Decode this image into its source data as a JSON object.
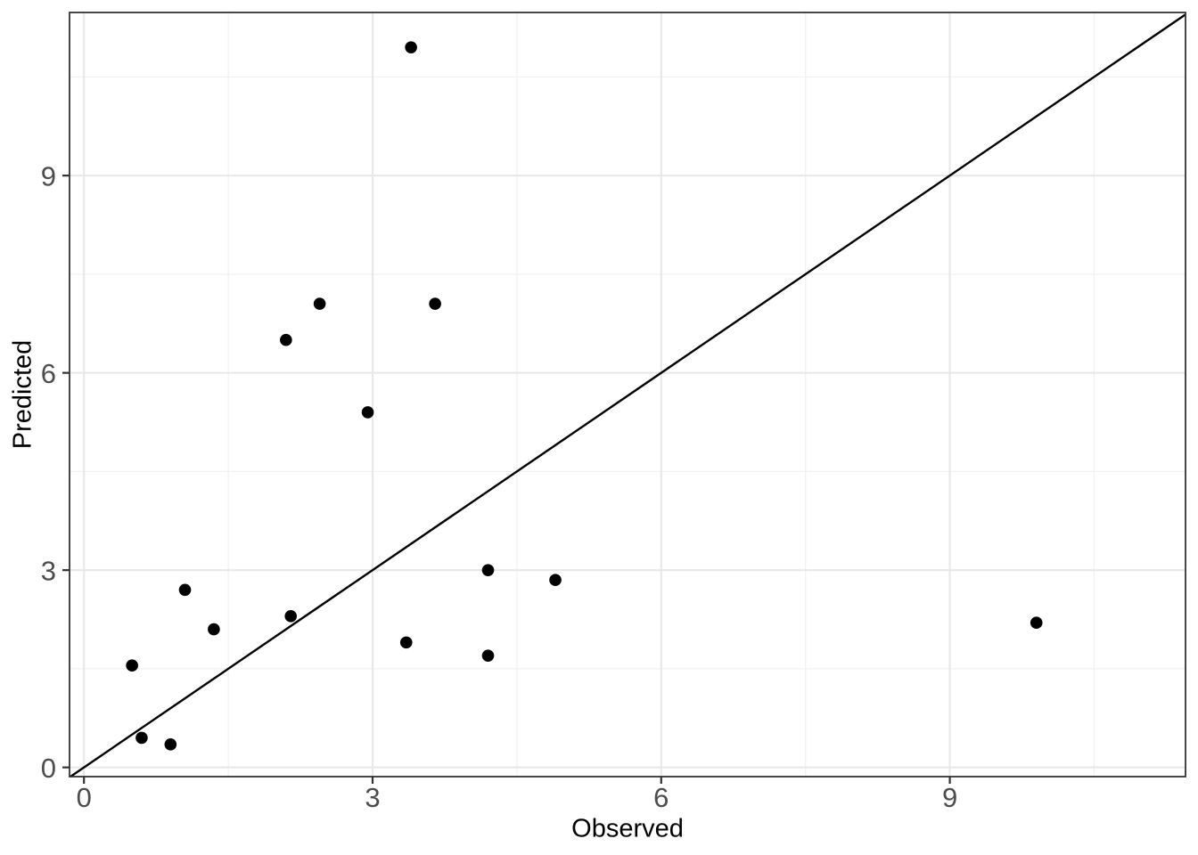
{
  "page": {
    "background": "#FFFFFF"
  },
  "chart_data": {
    "type": "scatter",
    "title": "",
    "xlabel": "Observed",
    "ylabel": "Predicted",
    "x_ticks": [
      0,
      3,
      6,
      9
    ],
    "y_ticks": [
      0,
      3,
      6,
      9
    ],
    "x_minor_gridlines": [
      1.5,
      4.5,
      7.5,
      10.5
    ],
    "y_minor_gridlines": [
      1.5,
      4.5,
      7.5,
      10.5
    ],
    "xlim": [
      -0.15,
      11.45
    ],
    "ylim": [
      -0.14,
      11.48
    ],
    "grid": "on",
    "legend_position": "none",
    "reference_line": {
      "kind": "identity",
      "slope": 1,
      "intercept": 0
    },
    "points": [
      {
        "observed": 3.4,
        "predicted": 10.95
      },
      {
        "observed": 2.45,
        "predicted": 7.05
      },
      {
        "observed": 3.65,
        "predicted": 7.05
      },
      {
        "observed": 2.1,
        "predicted": 6.5
      },
      {
        "observed": 2.95,
        "predicted": 5.4
      },
      {
        "observed": 4.2,
        "predicted": 3.0
      },
      {
        "observed": 4.9,
        "predicted": 2.85
      },
      {
        "observed": 1.05,
        "predicted": 2.7
      },
      {
        "observed": 2.15,
        "predicted": 2.3
      },
      {
        "observed": 1.35,
        "predicted": 2.1
      },
      {
        "observed": 3.35,
        "predicted": 1.9
      },
      {
        "observed": 4.2,
        "predicted": 1.7
      },
      {
        "observed": 0.5,
        "predicted": 1.55
      },
      {
        "observed": 9.9,
        "predicted": 2.2
      },
      {
        "observed": 0.6,
        "predicted": 0.45
      },
      {
        "observed": 0.9,
        "predicted": 0.35
      }
    ],
    "style": {
      "point_color": "#000000",
      "reference_line_color": "#000000",
      "grid_major_color": "#E7E7E7",
      "grid_minor_color": "#F1F1F1",
      "panel_border_color": "#333333",
      "tick_color": "#333333",
      "axis_text_color": "#4D4D4D",
      "axis_title_color": "#000000"
    }
  }
}
